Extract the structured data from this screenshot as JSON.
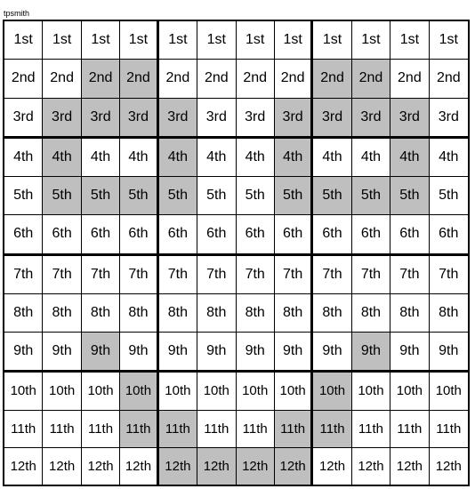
{
  "caption": "tpsmith",
  "grid": {
    "rows": 12,
    "cols": 12,
    "block_rows": 3,
    "block_cols": 4,
    "labels": [
      "1st",
      "2nd",
      "3rd",
      "4th",
      "5th",
      "6th",
      "7th",
      "8th",
      "9th",
      "10th",
      "11th",
      "12th"
    ],
    "shaded_color": "#bfbfbf",
    "bg_color": "#ffffff",
    "shaded": [
      [
        0,
        0,
        0,
        0,
        0,
        0,
        0,
        0,
        0,
        0,
        0,
        0
      ],
      [
        0,
        0,
        1,
        1,
        0,
        0,
        0,
        0,
        1,
        1,
        0,
        0
      ],
      [
        0,
        1,
        1,
        1,
        1,
        0,
        0,
        1,
        1,
        1,
        1,
        0
      ],
      [
        0,
        1,
        0,
        0,
        1,
        0,
        0,
        1,
        0,
        0,
        1,
        0
      ],
      [
        0,
        1,
        1,
        1,
        1,
        0,
        0,
        1,
        1,
        1,
        1,
        0
      ],
      [
        0,
        0,
        0,
        0,
        0,
        0,
        0,
        0,
        0,
        0,
        0,
        0
      ],
      [
        0,
        0,
        0,
        0,
        0,
        0,
        0,
        0,
        0,
        0,
        0,
        0
      ],
      [
        0,
        0,
        0,
        0,
        0,
        0,
        0,
        0,
        0,
        0,
        0,
        0
      ],
      [
        0,
        0,
        1,
        0,
        0,
        0,
        0,
        0,
        0,
        1,
        0,
        0
      ],
      [
        0,
        0,
        0,
        1,
        0,
        0,
        0,
        0,
        1,
        0,
        0,
        0
      ],
      [
        0,
        0,
        0,
        1,
        1,
        0,
        0,
        1,
        1,
        0,
        0,
        0
      ],
      [
        0,
        0,
        0,
        0,
        1,
        1,
        1,
        1,
        0,
        0,
        0,
        0
      ]
    ]
  }
}
